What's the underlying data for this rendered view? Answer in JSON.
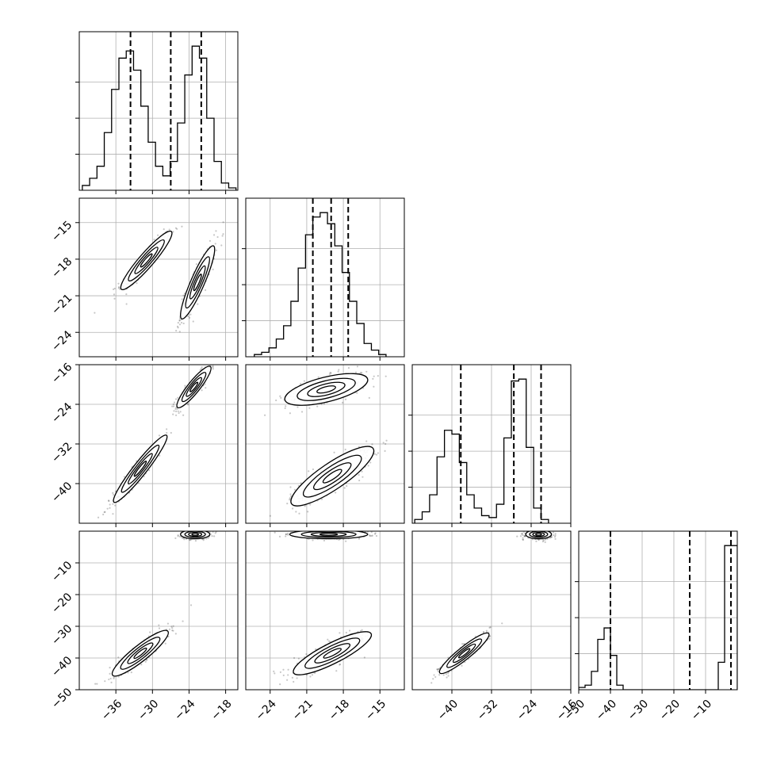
{
  "chart_data": {
    "type": "corner",
    "grid": true,
    "params": [
      {
        "range": [
          -42,
          -16
        ],
        "ticks": [
          -36,
          -30,
          -24,
          -18
        ],
        "tick_labels": [
          "−36",
          "−30",
          "−24",
          "−18"
        ]
      },
      {
        "range": [
          -26,
          -13
        ],
        "ticks": [
          -24,
          -21,
          -18,
          -15
        ],
        "tick_labels": [
          "−24",
          "−21",
          "−18",
          "−15"
        ]
      },
      {
        "range": [
          -48,
          -16
        ],
        "ticks": [
          -40,
          -32,
          -24,
          -16
        ],
        "tick_labels": [
          "−40",
          "−32",
          "−24",
          "−16"
        ]
      },
      {
        "range": [
          -50,
          0
        ],
        "ticks": [
          -50,
          -40,
          -30,
          -20,
          -10
        ],
        "tick_labels": [
          "−50",
          "−40",
          "−30",
          "−20",
          "−10"
        ]
      }
    ],
    "histograms": [
      {
        "edges_start": -41.5,
        "bin_width": 1.2,
        "counts": [
          2,
          5,
          10,
          24,
          42,
          55,
          58,
          50,
          35,
          20,
          10,
          6,
          12,
          28,
          48,
          60,
          55,
          30,
          12,
          3,
          1
        ],
        "quantiles": [
          -33.6,
          -27.0,
          -22.0
        ]
      },
      {
        "edges_start": -25.3,
        "bin_width": 0.6,
        "counts": [
          1,
          2,
          4,
          8,
          14,
          25,
          40,
          55,
          63,
          65,
          60,
          50,
          38,
          25,
          15,
          6,
          3,
          1
        ],
        "quantiles": [
          -20.5,
          -19.0,
          -17.6
        ]
      },
      {
        "edges_start": -47.5,
        "bin_width": 1.5,
        "counts": [
          2,
          6,
          15,
          35,
          49,
          47,
          32,
          15,
          8,
          4,
          3,
          10,
          45,
          75,
          76,
          40,
          8,
          2
        ],
        "quantiles": [
          -38.2,
          -27.5,
          -22.0
        ]
      },
      {
        "edges_start": -50,
        "bin_width": 2,
        "counts": [
          1,
          2,
          8,
          22,
          27,
          15,
          2,
          0,
          0,
          0,
          0,
          0,
          0,
          0,
          0,
          0,
          0,
          0,
          0,
          0,
          0,
          0,
          12,
          63,
          63
        ],
        "quantiles": [
          -40.0,
          -15.0,
          -2.0
        ]
      }
    ],
    "clusters": [
      {
        "row": 1,
        "col": 0,
        "centers": [
          {
            "x": -31,
            "y": -18.1,
            "sx": 2.1,
            "sy": 1.2,
            "rho": 0.93
          },
          {
            "x": -22.6,
            "y": -19.9,
            "sx": 1.4,
            "sy": 1.5,
            "rho": 0.9
          }
        ]
      },
      {
        "row": 2,
        "col": 0,
        "centers": [
          {
            "x": -23.2,
            "y": -20.5,
            "sx": 1.4,
            "sy": 2.1,
            "rho": 0.9
          },
          {
            "x": -32,
            "y": -37.0,
            "sx": 2.2,
            "sy": 3.4,
            "rho": 0.95
          }
        ]
      },
      {
        "row": 2,
        "col": 1,
        "centers": [
          {
            "x": -19.4,
            "y": -21.0,
            "sx": 1.7,
            "sy": 1.6,
            "rho": 0.6
          },
          {
            "x": -18.9,
            "y": -38.5,
            "sx": 1.7,
            "sy": 3.0,
            "rho": 0.85
          }
        ]
      },
      {
        "row": 3,
        "col": 0,
        "centers": [
          {
            "x": -23.0,
            "y": -1.0,
            "sx": 1.2,
            "sy": 0.7,
            "rho": 0.0
          },
          {
            "x": -32.0,
            "y": -38.5,
            "sx": 2.3,
            "sy": 3.6,
            "rho": 0.9
          }
        ]
      },
      {
        "row": 3,
        "col": 1,
        "centers": [
          {
            "x": -19.2,
            "y": -1.0,
            "sx": 1.6,
            "sy": 0.7,
            "rho": 0.0
          },
          {
            "x": -18.9,
            "y": -38.5,
            "sx": 1.6,
            "sy": 3.4,
            "rho": 0.85
          }
        ]
      },
      {
        "row": 3,
        "col": 2,
        "centers": [
          {
            "x": -22.5,
            "y": -1.0,
            "sx": 1.3,
            "sy": 0.7,
            "rho": 0.0
          },
          {
            "x": -37.5,
            "y": -38.5,
            "sx": 2.5,
            "sy": 3.2,
            "rho": 0.92
          }
        ]
      }
    ]
  }
}
